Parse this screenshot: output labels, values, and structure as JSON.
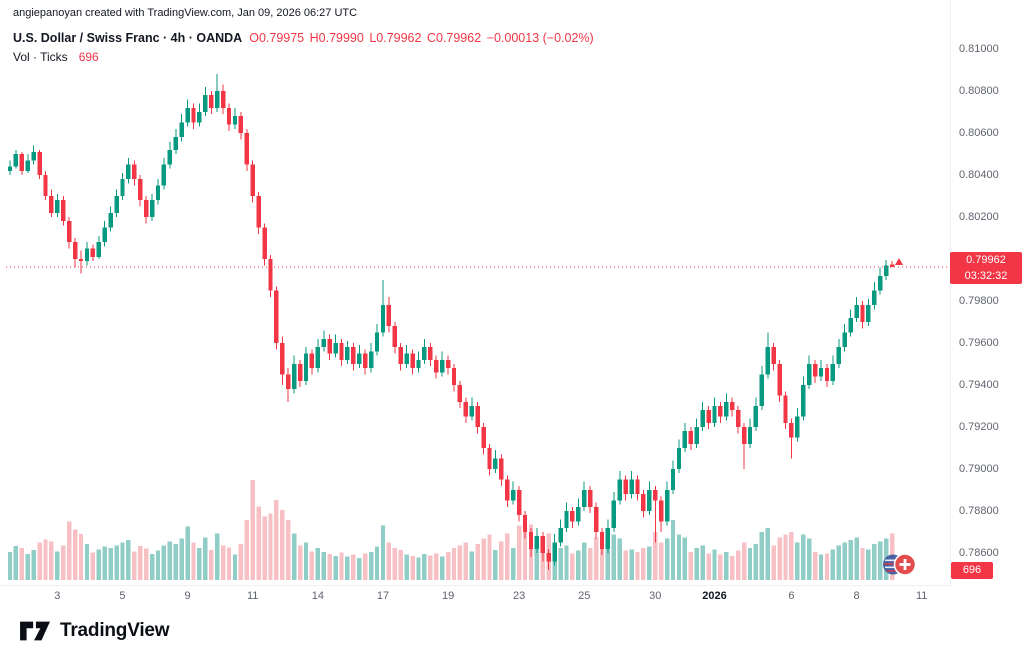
{
  "attribution": "angiepanoyan created with TradingView.com, Jan 09, 2026 06:27 UTC",
  "legend": {
    "symbol_title": "U.S. Dollar / Swiss Franc · 4h · OANDA",
    "ohlc": [
      "O0.79975",
      "H0.79990",
      "L0.79962",
      "C0.79962",
      "−0.00013 (−0.02%)"
    ],
    "volume_label": "Vol · Ticks",
    "volume_value": "696"
  },
  "price_axis": {
    "last_price": "0.79962",
    "countdown": "03:32:32",
    "volume_badge": "696"
  },
  "footer": {
    "brand": "TradingView"
  },
  "colors": {
    "up": "#089981",
    "down": "#f23645",
    "vol_up": "#8fcdc6",
    "vol_down": "#f7c0c4",
    "accent_red": "#f23645",
    "text": "#131722",
    "axis_text": "#60646e"
  },
  "chart_data": {
    "type": "candlestick",
    "title": "U.S. Dollar / Swiss Franc",
    "symbol": "USD/CHF",
    "interval": "4h",
    "exchange": "OANDA",
    "legend_position": "top-left",
    "grid": false,
    "ylim": [
      0.784,
      0.8102
    ],
    "last": {
      "o": 0.79975,
      "h": 0.7999,
      "l": 0.79962,
      "c": 0.79962,
      "change": -0.00013,
      "change_pct": -0.02,
      "volume_ticks": 696
    },
    "y_ticks": [
      "0.81000",
      "0.80800",
      "0.80600",
      "0.80400",
      "0.80200",
      "0.80000",
      "0.79800",
      "0.79600",
      "0.79400",
      "0.79200",
      "0.79000",
      "0.78800",
      "0.78600"
    ],
    "x_ticks": [
      [
        8,
        "3"
      ],
      [
        19,
        "5"
      ],
      [
        30,
        "9"
      ],
      [
        41,
        "11"
      ],
      [
        52,
        "14"
      ],
      [
        63,
        "17"
      ],
      [
        74,
        "19"
      ],
      [
        86,
        "23"
      ],
      [
        97,
        "25"
      ],
      [
        109,
        "30"
      ],
      [
        119,
        "2026"
      ],
      [
        132,
        "6"
      ],
      [
        143,
        "8"
      ],
      [
        154,
        "11"
      ]
    ],
    "candles": [
      [
        0.8042,
        0.8047,
        0.804,
        0.8044,
        420
      ],
      [
        0.8044,
        0.8052,
        0.8043,
        0.805,
        510
      ],
      [
        0.805,
        0.8051,
        0.804,
        0.8042,
        480
      ],
      [
        0.8042,
        0.805,
        0.8041,
        0.8047,
        390
      ],
      [
        0.8047,
        0.8054,
        0.8045,
        0.8051,
        450
      ],
      [
        0.8051,
        0.8052,
        0.8038,
        0.804,
        560
      ],
      [
        0.804,
        0.8042,
        0.8028,
        0.803,
        610
      ],
      [
        0.803,
        0.8033,
        0.802,
        0.8022,
        580
      ],
      [
        0.8022,
        0.8031,
        0.802,
        0.8028,
        430
      ],
      [
        0.8028,
        0.803,
        0.8016,
        0.8018,
        520
      ],
      [
        0.8018,
        0.802,
        0.8005,
        0.8008,
        880
      ],
      [
        0.8008,
        0.801,
        0.7996,
        0.8,
        760
      ],
      [
        0.8,
        0.8004,
        0.7993,
        0.7999,
        690
      ],
      [
        0.7999,
        0.8008,
        0.7997,
        0.8005,
        540
      ],
      [
        0.8005,
        0.8007,
        0.7999,
        0.8001,
        410
      ],
      [
        0.8001,
        0.8011,
        0.8,
        0.8008,
        460
      ],
      [
        0.8008,
        0.8018,
        0.8006,
        0.8015,
        500
      ],
      [
        0.8015,
        0.8025,
        0.8013,
        0.8022,
        480
      ],
      [
        0.8022,
        0.8033,
        0.802,
        0.803,
        520
      ],
      [
        0.803,
        0.8041,
        0.8028,
        0.8038,
        560
      ],
      [
        0.8038,
        0.8048,
        0.8036,
        0.8045,
        600
      ],
      [
        0.8045,
        0.8047,
        0.8035,
        0.8038,
        430
      ],
      [
        0.8038,
        0.804,
        0.8025,
        0.8028,
        510
      ],
      [
        0.8028,
        0.803,
        0.8017,
        0.802,
        470
      ],
      [
        0.802,
        0.8031,
        0.8018,
        0.8028,
        390
      ],
      [
        0.8028,
        0.8038,
        0.8026,
        0.8035,
        440
      ],
      [
        0.8035,
        0.8048,
        0.8033,
        0.8045,
        520
      ],
      [
        0.8045,
        0.8056,
        0.8043,
        0.8052,
        580
      ],
      [
        0.8052,
        0.8062,
        0.805,
        0.8058,
        540
      ],
      [
        0.8058,
        0.8069,
        0.8056,
        0.8065,
        620
      ],
      [
        0.8065,
        0.8076,
        0.8063,
        0.8072,
        800
      ],
      [
        0.8072,
        0.8074,
        0.8062,
        0.8065,
        560
      ],
      [
        0.8065,
        0.8074,
        0.8063,
        0.807,
        480
      ],
      [
        0.807,
        0.8082,
        0.8068,
        0.8078,
        640
      ],
      [
        0.8078,
        0.808,
        0.8069,
        0.8072,
        450
      ],
      [
        0.8072,
        0.8088,
        0.807,
        0.808,
        700
      ],
      [
        0.808,
        0.8083,
        0.8069,
        0.8072,
        520
      ],
      [
        0.8072,
        0.8074,
        0.8061,
        0.8064,
        490
      ],
      [
        0.8064,
        0.8072,
        0.8062,
        0.8068,
        380
      ],
      [
        0.8068,
        0.807,
        0.8057,
        0.806,
        540
      ],
      [
        0.806,
        0.8062,
        0.8042,
        0.8045,
        900
      ],
      [
        0.8045,
        0.8047,
        0.8027,
        0.803,
        1500
      ],
      [
        0.803,
        0.8032,
        0.8012,
        0.8015,
        1100
      ],
      [
        0.8015,
        0.8017,
        0.7997,
        0.8,
        950
      ],
      [
        0.8,
        0.8002,
        0.7982,
        0.7985,
        1000
      ],
      [
        0.7985,
        0.7987,
        0.7957,
        0.796,
        1200
      ],
      [
        0.796,
        0.7963,
        0.794,
        0.7945,
        1050
      ],
      [
        0.7945,
        0.7948,
        0.7932,
        0.7938,
        900
      ],
      [
        0.7938,
        0.7954,
        0.7936,
        0.795,
        700
      ],
      [
        0.795,
        0.7952,
        0.7939,
        0.7942,
        520
      ],
      [
        0.7942,
        0.7958,
        0.794,
        0.7955,
        560
      ],
      [
        0.7955,
        0.7957,
        0.7945,
        0.7948,
        430
      ],
      [
        0.7948,
        0.7962,
        0.7946,
        0.7958,
        480
      ],
      [
        0.7958,
        0.7966,
        0.7956,
        0.7962,
        420
      ],
      [
        0.7962,
        0.7964,
        0.7952,
        0.7955,
        390
      ],
      [
        0.7955,
        0.7964,
        0.7953,
        0.796,
        360
      ],
      [
        0.796,
        0.7962,
        0.7949,
        0.7952,
        410
      ],
      [
        0.7952,
        0.7961,
        0.795,
        0.7958,
        350
      ],
      [
        0.7958,
        0.796,
        0.7947,
        0.795,
        380
      ],
      [
        0.795,
        0.7959,
        0.7948,
        0.7955,
        330
      ],
      [
        0.7955,
        0.7957,
        0.7945,
        0.7948,
        400
      ],
      [
        0.7948,
        0.796,
        0.7946,
        0.7956,
        420
      ],
      [
        0.7956,
        0.7969,
        0.7954,
        0.7965,
        500
      ],
      [
        0.7965,
        0.799,
        0.7963,
        0.7978,
        820
      ],
      [
        0.7978,
        0.7982,
        0.7965,
        0.7968,
        560
      ],
      [
        0.7968,
        0.797,
        0.7955,
        0.7958,
        480
      ],
      [
        0.7958,
        0.796,
        0.7947,
        0.795,
        450
      ],
      [
        0.795,
        0.7959,
        0.7948,
        0.7955,
        380
      ],
      [
        0.7955,
        0.7957,
        0.7945,
        0.7948,
        360
      ],
      [
        0.7948,
        0.7956,
        0.7946,
        0.7952,
        340
      ],
      [
        0.7952,
        0.7962,
        0.795,
        0.7958,
        390
      ],
      [
        0.7958,
        0.796,
        0.7949,
        0.7952,
        370
      ],
      [
        0.7952,
        0.7954,
        0.7943,
        0.7946,
        400
      ],
      [
        0.7946,
        0.7956,
        0.7944,
        0.7952,
        350
      ],
      [
        0.7952,
        0.7954,
        0.7945,
        0.7948,
        420
      ],
      [
        0.7948,
        0.795,
        0.7937,
        0.794,
        480
      ],
      [
        0.794,
        0.7942,
        0.7929,
        0.7932,
        520
      ],
      [
        0.7932,
        0.7934,
        0.7922,
        0.7925,
        560
      ],
      [
        0.7925,
        0.7934,
        0.7923,
        0.793,
        430
      ],
      [
        0.793,
        0.7932,
        0.7917,
        0.792,
        540
      ],
      [
        0.792,
        0.7922,
        0.7907,
        0.791,
        620
      ],
      [
        0.791,
        0.7912,
        0.7897,
        0.79,
        680
      ],
      [
        0.79,
        0.7909,
        0.7898,
        0.7905,
        450
      ],
      [
        0.7905,
        0.7907,
        0.7892,
        0.7895,
        580
      ],
      [
        0.7895,
        0.7897,
        0.7882,
        0.7885,
        700
      ],
      [
        0.7885,
        0.7894,
        0.7883,
        0.789,
        480
      ],
      [
        0.789,
        0.7892,
        0.7875,
        0.7878,
        820
      ],
      [
        0.7878,
        0.788,
        0.7867,
        0.787,
        760
      ],
      [
        0.787,
        0.7872,
        0.7858,
        0.7862,
        830
      ],
      [
        0.7862,
        0.7872,
        0.786,
        0.7868,
        540
      ],
      [
        0.7868,
        0.787,
        0.7856,
        0.786,
        620
      ],
      [
        0.786,
        0.7862,
        0.7852,
        0.7856,
        700
      ],
      [
        0.7856,
        0.7869,
        0.7854,
        0.7865,
        560
      ],
      [
        0.7865,
        0.7876,
        0.7863,
        0.7872,
        480
      ],
      [
        0.7872,
        0.7884,
        0.787,
        0.788,
        520
      ],
      [
        0.788,
        0.7882,
        0.7872,
        0.7875,
        400
      ],
      [
        0.7875,
        0.7886,
        0.7873,
        0.7882,
        440
      ],
      [
        0.7882,
        0.7894,
        0.788,
        0.789,
        560
      ],
      [
        0.789,
        0.7892,
        0.7879,
        0.7882,
        480
      ],
      [
        0.7882,
        0.7884,
        0.7867,
        0.787,
        640
      ],
      [
        0.787,
        0.7872,
        0.7859,
        0.7862,
        580
      ],
      [
        0.7862,
        0.7876,
        0.786,
        0.7872,
        520
      ],
      [
        0.7872,
        0.7889,
        0.787,
        0.7885,
        680
      ],
      [
        0.7885,
        0.7899,
        0.7883,
        0.7895,
        620
      ],
      [
        0.7895,
        0.7897,
        0.7885,
        0.7888,
        440
      ],
      [
        0.7888,
        0.7899,
        0.7886,
        0.7895,
        460
      ],
      [
        0.7895,
        0.7897,
        0.7885,
        0.7888,
        420
      ],
      [
        0.7888,
        0.789,
        0.7877,
        0.788,
        480
      ],
      [
        0.788,
        0.7894,
        0.7878,
        0.789,
        500
      ],
      [
        0.789,
        0.7892,
        0.7865,
        0.7885,
        720
      ],
      [
        0.7885,
        0.7887,
        0.787,
        0.7875,
        560
      ],
      [
        0.7875,
        0.7894,
        0.7873,
        0.789,
        620
      ],
      [
        0.789,
        0.7904,
        0.7888,
        0.79,
        900
      ],
      [
        0.79,
        0.7914,
        0.7898,
        0.791,
        680
      ],
      [
        0.791,
        0.7922,
        0.7908,
        0.7918,
        640
      ],
      [
        0.7918,
        0.792,
        0.7909,
        0.7912,
        420
      ],
      [
        0.7912,
        0.7924,
        0.791,
        0.792,
        480
      ],
      [
        0.792,
        0.7932,
        0.7918,
        0.7928,
        520
      ],
      [
        0.7928,
        0.793,
        0.7919,
        0.7922,
        400
      ],
      [
        0.7922,
        0.7934,
        0.792,
        0.793,
        460
      ],
      [
        0.793,
        0.7932,
        0.7922,
        0.7925,
        380
      ],
      [
        0.7925,
        0.7936,
        0.7923,
        0.7932,
        420
      ],
      [
        0.7932,
        0.7934,
        0.7925,
        0.7928,
        360
      ],
      [
        0.7928,
        0.793,
        0.7917,
        0.792,
        440
      ],
      [
        0.792,
        0.7922,
        0.79,
        0.7912,
        560
      ],
      [
        0.7912,
        0.7924,
        0.791,
        0.792,
        480
      ],
      [
        0.792,
        0.7934,
        0.7918,
        0.793,
        540
      ],
      [
        0.793,
        0.7949,
        0.7928,
        0.7945,
        720
      ],
      [
        0.7945,
        0.7965,
        0.7943,
        0.7958,
        780
      ],
      [
        0.7958,
        0.796,
        0.7947,
        0.795,
        520
      ],
      [
        0.795,
        0.7952,
        0.7932,
        0.7935,
        640
      ],
      [
        0.7935,
        0.7937,
        0.7919,
        0.7922,
        680
      ],
      [
        0.7922,
        0.7924,
        0.7905,
        0.7915,
        720
      ],
      [
        0.7915,
        0.7929,
        0.7913,
        0.7925,
        560
      ],
      [
        0.7925,
        0.7944,
        0.7923,
        0.794,
        680
      ],
      [
        0.794,
        0.7954,
        0.7938,
        0.795,
        620
      ],
      [
        0.795,
        0.7952,
        0.7941,
        0.7944,
        420
      ],
      [
        0.7944,
        0.7952,
        0.7942,
        0.7948,
        380
      ],
      [
        0.7948,
        0.795,
        0.7939,
        0.7942,
        400
      ],
      [
        0.7942,
        0.7954,
        0.794,
        0.795,
        460
      ],
      [
        0.795,
        0.7962,
        0.7948,
        0.7958,
        520
      ],
      [
        0.7958,
        0.7969,
        0.7956,
        0.7965,
        560
      ],
      [
        0.7965,
        0.7976,
        0.7963,
        0.7972,
        600
      ],
      [
        0.7972,
        0.7982,
        0.797,
        0.7978,
        640
      ],
      [
        0.7978,
        0.798,
        0.7967,
        0.797,
        480
      ],
      [
        0.797,
        0.7981,
        0.7968,
        0.7978,
        460
      ],
      [
        0.7978,
        0.7989,
        0.7976,
        0.7985,
        540
      ],
      [
        0.7985,
        0.7996,
        0.7983,
        0.7992,
        580
      ],
      [
        0.7992,
        0.79995,
        0.799,
        0.7997,
        620
      ],
      [
        0.79975,
        0.7999,
        0.79962,
        0.79962,
        696
      ]
    ]
  }
}
